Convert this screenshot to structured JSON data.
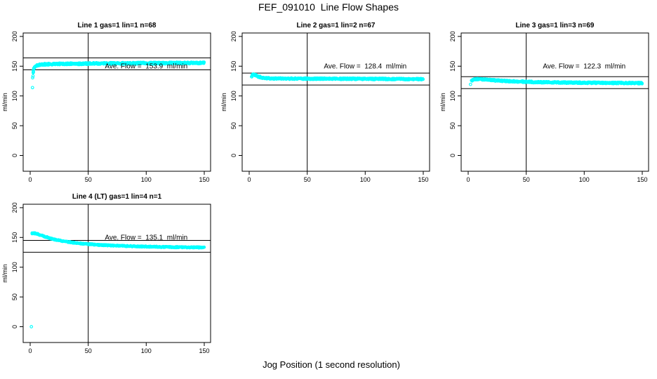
{
  "title": "FEF_091010  Line Flow Shapes",
  "xlabel": "Jog Position (1 second resolution)",
  "colors": {
    "points": "#00FFFF",
    "axis": "#000000",
    "background": "#FFFFFF"
  },
  "chart_data": [
    {
      "type": "scatter",
      "title": "Line 1 gas=1 lin=1 n=68",
      "ylabel": "ml/min",
      "ave_flow": 153.9,
      "ave_flow_label": "Ave. Flow =  153.9  ml/min",
      "annotation_at": [
        100,
        150
      ],
      "xlim": [
        -6.05,
        155.45
      ],
      "ylim": [
        -26.6,
        205.8
      ],
      "xticks": [
        0,
        50,
        100,
        150
      ],
      "yticks": [
        0,
        50,
        100,
        150,
        200
      ],
      "vline_x": 50,
      "hlines": [
        163.9,
        143.9
      ],
      "curve": [
        [
          2.8,
          140
        ],
        [
          3,
          143
        ],
        [
          3.3,
          145.5
        ],
        [
          3.7,
          147.5
        ],
        [
          4.2,
          149
        ],
        [
          5,
          150.5
        ],
        [
          6,
          151.4
        ],
        [
          7.5,
          152.2
        ],
        [
          9,
          152.7
        ],
        [
          12,
          153.1
        ],
        [
          16,
          153.4
        ],
        [
          22,
          153.7
        ],
        [
          30,
          153.9
        ],
        [
          45,
          154.2
        ],
        [
          60,
          154.5
        ],
        [
          80,
          154.8
        ],
        [
          100,
          155
        ],
        [
          125,
          155.3
        ],
        [
          150,
          155.5
        ]
      ],
      "outliers": [
        [
          2,
          114
        ],
        [
          2.1,
          130.5
        ],
        [
          2.4,
          133.5
        ],
        [
          2.6,
          139
        ],
        [
          2.8,
          143.5
        ],
        [
          3,
          146.5
        ]
      ],
      "jitter": 1.4,
      "step": 0.6,
      "passes": 2,
      "seed": 11
    },
    {
      "type": "scatter",
      "title": "Line 2 gas=1 lin=2 n=67",
      "ylabel": "ml/min",
      "ave_flow": 128.4,
      "ave_flow_label": "Ave. Flow =  128.4  ml/min",
      "annotation_at": [
        100,
        150
      ],
      "xlim": [
        -6.05,
        155.45
      ],
      "ylim": [
        -26.6,
        205.8
      ],
      "xticks": [
        0,
        50,
        100,
        150
      ],
      "yticks": [
        0,
        50,
        100,
        150,
        200
      ],
      "vline_x": 50,
      "hlines": [
        138.4,
        118.4
      ],
      "curve": [
        [
          2,
          132.8
        ],
        [
          2.5,
          134.2
        ],
        [
          3,
          135.5
        ],
        [
          3.8,
          136
        ],
        [
          4.5,
          135.6
        ],
        [
          5.5,
          134.7
        ],
        [
          6.5,
          133.8
        ],
        [
          8,
          132.6
        ],
        [
          9.5,
          131.6
        ],
        [
          11,
          130.9
        ],
        [
          13,
          130.2
        ],
        [
          16,
          129.7
        ],
        [
          20,
          129.4
        ],
        [
          26,
          129.2
        ],
        [
          35,
          129.1
        ],
        [
          50,
          129
        ],
        [
          70,
          128.9
        ],
        [
          95,
          128.7
        ],
        [
          120,
          128.5
        ],
        [
          135,
          128.3
        ],
        [
          150,
          128.1
        ]
      ],
      "outliers": [],
      "jitter": 1.2,
      "step": 0.6,
      "passes": 2,
      "seed": 22
    },
    {
      "type": "scatter",
      "title": "Line 3 gas=1 lin=3 n=69",
      "ylabel": "ml/min",
      "ave_flow": 122.3,
      "ave_flow_label": "Ave. Flow =  122.3  ml/min",
      "annotation_at": [
        100,
        150
      ],
      "xlim": [
        -6.05,
        155.45
      ],
      "ylim": [
        -26.6,
        205.8
      ],
      "xticks": [
        0,
        50,
        100,
        150
      ],
      "yticks": [
        0,
        50,
        100,
        150,
        200
      ],
      "vline_x": 50,
      "hlines": [
        132.3,
        112.3
      ],
      "curve": [
        [
          2.8,
          125.5
        ],
        [
          3.5,
          126.5
        ],
        [
          4.5,
          127.2
        ],
        [
          6,
          127.8
        ],
        [
          8,
          128.1
        ],
        [
          10,
          128.1
        ],
        [
          12.5,
          127.8
        ],
        [
          15,
          127.4
        ],
        [
          18,
          126.9
        ],
        [
          22,
          126.3
        ],
        [
          27,
          125.6
        ],
        [
          33,
          125
        ],
        [
          40,
          124.4
        ],
        [
          48,
          123.9
        ],
        [
          56,
          123.4
        ],
        [
          65,
          123
        ],
        [
          75,
          122.7
        ],
        [
          88,
          122.4
        ],
        [
          100,
          122.2
        ],
        [
          115,
          122
        ],
        [
          130,
          121.8
        ],
        [
          150,
          121.6
        ]
      ],
      "outliers": [
        [
          2,
          119.5
        ]
      ],
      "jitter": 1.2,
      "step": 0.6,
      "passes": 2,
      "seed": 33
    },
    {
      "type": "scatter",
      "title": "Line 4 (LT) gas=1 lin=4 n=1",
      "ylabel": "ml/min",
      "ave_flow": 135.1,
      "ave_flow_label": "Ave. Flow =  135.1  ml/min",
      "annotation_at": [
        100,
        150
      ],
      "xlim": [
        -6.05,
        155.45
      ],
      "ylim": [
        -26.6,
        205.8
      ],
      "xticks": [
        0,
        50,
        100,
        150
      ],
      "yticks": [
        0,
        50,
        100,
        150,
        200
      ],
      "vline_x": 50,
      "hlines": [
        145.1,
        125.1
      ],
      "curve": [
        [
          1.5,
          156.8
        ],
        [
          3,
          157.2
        ],
        [
          4.5,
          156.8
        ],
        [
          6,
          155.9
        ],
        [
          8,
          154.6
        ],
        [
          10,
          153.2
        ],
        [
          12,
          151.8
        ],
        [
          14,
          150.5
        ],
        [
          16,
          149.3
        ],
        [
          18,
          148.1
        ],
        [
          21,
          146.6
        ],
        [
          24,
          145.4
        ],
        [
          27,
          144.3
        ],
        [
          30,
          143.3
        ],
        [
          34,
          142.1
        ],
        [
          38,
          141.1
        ],
        [
          42,
          140.2
        ],
        [
          46,
          139.4
        ],
        [
          50,
          138.7
        ],
        [
          55,
          138
        ],
        [
          60,
          137.4
        ],
        [
          66,
          136.8
        ],
        [
          72,
          136.3
        ],
        [
          80,
          135.7
        ],
        [
          88,
          135.2
        ],
        [
          96,
          134.8
        ],
        [
          105,
          134.4
        ],
        [
          115,
          134
        ],
        [
          125,
          133.7
        ],
        [
          138,
          133.4
        ],
        [
          150,
          133.2
        ]
      ],
      "outliers": [
        [
          1,
          0
        ]
      ],
      "jitter": 0.8,
      "step": 0.4,
      "passes": 1,
      "seed": 44
    }
  ]
}
